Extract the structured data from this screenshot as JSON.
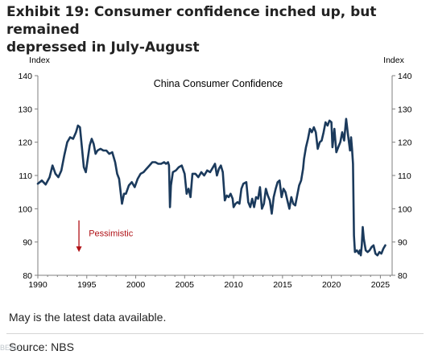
{
  "title_line1": "Exhibit 19: Consumer confidence inched up, but remained",
  "title_line2": "depressed in July-August",
  "note": "May is the latest data available.",
  "source": "Source: NBS",
  "watermark": "BEAU",
  "colors": {
    "line": "#1b3a5c",
    "annotation": "#b01116",
    "grid": "#dcdcdc",
    "axis": "#7f7f7f"
  },
  "chart_data": {
    "type": "line",
    "title": "China Consumer Confidence",
    "ylabel_left": "Index",
    "ylabel_right": "Index",
    "ylim": [
      80,
      140
    ],
    "yticks": [
      80,
      90,
      100,
      110,
      120,
      130,
      140
    ],
    "xlim": [
      1990,
      2026.2
    ],
    "xticks": [
      1990,
      1995,
      2000,
      2005,
      2010,
      2015,
      2020,
      2025
    ],
    "grid": false,
    "annotation": {
      "text": "Pessimistic",
      "arrow_x": 1994.2,
      "arrow_from": 96.5,
      "arrow_to": 87,
      "text_x": 1995.2,
      "text_y": 92.5
    },
    "series": [
      {
        "name": "",
        "points": [
          [
            1990.0,
            107.5
          ],
          [
            1990.4,
            108.5
          ],
          [
            1990.8,
            107.3
          ],
          [
            1991.2,
            109.5
          ],
          [
            1991.5,
            113
          ],
          [
            1991.8,
            110.5
          ],
          [
            1992.1,
            109.5
          ],
          [
            1992.4,
            111.5
          ],
          [
            1992.7,
            116
          ],
          [
            1993.0,
            120
          ],
          [
            1993.3,
            121.5
          ],
          [
            1993.6,
            121
          ],
          [
            1993.9,
            123
          ],
          [
            1994.1,
            125
          ],
          [
            1994.3,
            124.5
          ],
          [
            1994.5,
            118.5
          ],
          [
            1994.7,
            112.5
          ],
          [
            1994.9,
            111
          ],
          [
            1995.1,
            115
          ],
          [
            1995.3,
            119
          ],
          [
            1995.5,
            121
          ],
          [
            1995.7,
            119.5
          ],
          [
            1995.9,
            116.5
          ],
          [
            1996.1,
            117.5
          ],
          [
            1996.4,
            118
          ],
          [
            1996.7,
            117.5
          ],
          [
            1997.0,
            117.5
          ],
          [
            1997.3,
            116.5
          ],
          [
            1997.6,
            117
          ],
          [
            1997.9,
            114
          ],
          [
            1998.1,
            110.5
          ],
          [
            1998.3,
            109
          ],
          [
            1998.5,
            104
          ],
          [
            1998.6,
            101.5
          ],
          [
            1998.8,
            104.5
          ],
          [
            1999.0,
            104.5
          ],
          [
            1999.3,
            107
          ],
          [
            1999.6,
            108
          ],
          [
            1999.9,
            106.5
          ],
          [
            2000.2,
            109
          ],
          [
            2000.5,
            110.5
          ],
          [
            2000.8,
            111
          ],
          [
            2001.1,
            112
          ],
          [
            2001.4,
            113
          ],
          [
            2001.7,
            114
          ],
          [
            2002.0,
            114
          ],
          [
            2002.3,
            113.5
          ],
          [
            2002.6,
            113.5
          ],
          [
            2002.9,
            114
          ],
          [
            2003.1,
            113.5
          ],
          [
            2003.3,
            114
          ],
          [
            2003.4,
            113
          ],
          [
            2003.5,
            100.5
          ],
          [
            2003.6,
            107
          ],
          [
            2003.8,
            111
          ],
          [
            2004.1,
            111.5
          ],
          [
            2004.4,
            112.5
          ],
          [
            2004.7,
            113
          ],
          [
            2005.0,
            110.5
          ],
          [
            2005.2,
            104.5
          ],
          [
            2005.4,
            106
          ],
          [
            2005.6,
            103.5
          ],
          [
            2005.8,
            110.5
          ],
          [
            2006.1,
            110.5
          ],
          [
            2006.4,
            109.5
          ],
          [
            2006.7,
            111
          ],
          [
            2007.0,
            110
          ],
          [
            2007.3,
            111.5
          ],
          [
            2007.6,
            111
          ],
          [
            2007.9,
            112.5
          ],
          [
            2008.1,
            113.5
          ],
          [
            2008.3,
            110
          ],
          [
            2008.5,
            112
          ],
          [
            2008.7,
            113
          ],
          [
            2008.9,
            111
          ],
          [
            2009.1,
            102.5
          ],
          [
            2009.3,
            104
          ],
          [
            2009.5,
            103.5
          ],
          [
            2009.7,
            104.5
          ],
          [
            2009.9,
            103
          ],
          [
            2010.0,
            100.5
          ],
          [
            2010.2,
            101.5
          ],
          [
            2010.4,
            102
          ],
          [
            2010.6,
            101.5
          ],
          [
            2010.8,
            106
          ],
          [
            2011.0,
            107.5
          ],
          [
            2011.3,
            108
          ],
          [
            2011.5,
            102
          ],
          [
            2011.7,
            100.5
          ],
          [
            2011.9,
            103
          ],
          [
            2012.1,
            100.5
          ],
          [
            2012.3,
            103.5
          ],
          [
            2012.5,
            103
          ],
          [
            2012.7,
            106.5
          ],
          [
            2012.9,
            100
          ],
          [
            2013.1,
            101.5
          ],
          [
            2013.3,
            106
          ],
          [
            2013.5,
            104
          ],
          [
            2013.7,
            102.5
          ],
          [
            2013.9,
            98.5
          ],
          [
            2014.1,
            103.5
          ],
          [
            2014.3,
            106
          ],
          [
            2014.5,
            108
          ],
          [
            2014.7,
            108.5
          ],
          [
            2014.9,
            103.5
          ],
          [
            2015.1,
            106
          ],
          [
            2015.3,
            105
          ],
          [
            2015.5,
            102.5
          ],
          [
            2015.7,
            100
          ],
          [
            2015.9,
            103.5
          ],
          [
            2016.1,
            101.5
          ],
          [
            2016.3,
            101
          ],
          [
            2016.5,
            104
          ],
          [
            2016.7,
            107
          ],
          [
            2016.9,
            108.5
          ],
          [
            2017.1,
            112
          ],
          [
            2017.2,
            115
          ],
          [
            2017.4,
            118.5
          ],
          [
            2017.6,
            121
          ],
          [
            2017.8,
            124
          ],
          [
            2018.0,
            123
          ],
          [
            2018.2,
            124.5
          ],
          [
            2018.4,
            123
          ],
          [
            2018.6,
            118
          ],
          [
            2018.8,
            120
          ],
          [
            2019.0,
            120.5
          ],
          [
            2019.2,
            123
          ],
          [
            2019.4,
            126
          ],
          [
            2019.6,
            125
          ],
          [
            2019.8,
            126.5
          ],
          [
            2020.0,
            126
          ],
          [
            2020.1,
            118.5
          ],
          [
            2020.3,
            124
          ],
          [
            2020.5,
            117
          ],
          [
            2020.7,
            118.5
          ],
          [
            2020.9,
            120
          ],
          [
            2021.1,
            123
          ],
          [
            2021.3,
            120.5
          ],
          [
            2021.5,
            127
          ],
          [
            2021.7,
            122
          ],
          [
            2021.9,
            117.5
          ],
          [
            2022.0,
            121.5
          ],
          [
            2022.1,
            118
          ],
          [
            2022.2,
            113.5
          ],
          [
            2022.3,
            92
          ],
          [
            2022.4,
            87
          ],
          [
            2022.6,
            87.5
          ],
          [
            2022.8,
            86.5
          ],
          [
            2022.9,
            87.5
          ],
          [
            2023.0,
            86
          ],
          [
            2023.1,
            89
          ],
          [
            2023.2,
            94.5
          ],
          [
            2023.3,
            91
          ],
          [
            2023.5,
            87.5
          ],
          [
            2023.7,
            87
          ],
          [
            2023.9,
            87.5
          ],
          [
            2024.1,
            88.5
          ],
          [
            2024.3,
            89
          ],
          [
            2024.5,
            86.5
          ],
          [
            2024.7,
            86
          ],
          [
            2024.9,
            87
          ],
          [
            2025.1,
            86.5
          ],
          [
            2025.3,
            88
          ],
          [
            2025.5,
            89
          ]
        ]
      }
    ]
  }
}
